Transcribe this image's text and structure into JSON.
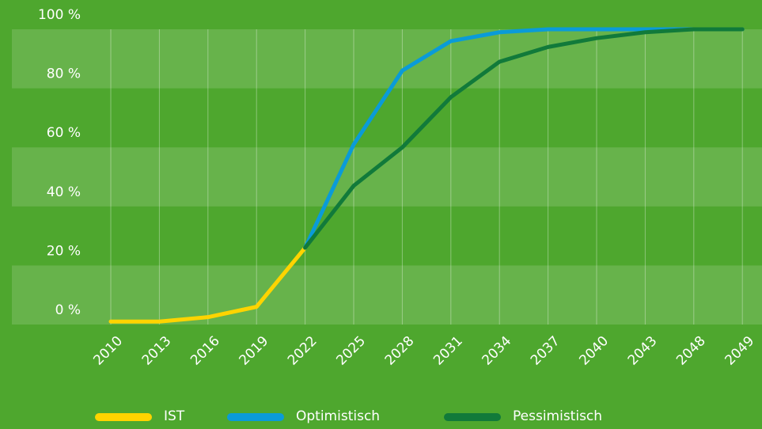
{
  "chart_data": {
    "type": "line",
    "categories": [
      "2010",
      "2013",
      "2016",
      "2019",
      "2022",
      "2025",
      "2028",
      "2031",
      "2034",
      "2037",
      "2040",
      "2043",
      "2048",
      "2049"
    ],
    "series": [
      {
        "name": "IST",
        "color": "#ffd400",
        "values": [
          1,
          1,
          2.5,
          6,
          26,
          null,
          null,
          null,
          null,
          null,
          null,
          null,
          null,
          null
        ]
      },
      {
        "name": "Optimistisch",
        "color": "#0a9bd8",
        "values": [
          null,
          null,
          null,
          null,
          26,
          61,
          86,
          96,
          99,
          100,
          100,
          100,
          100,
          100
        ]
      },
      {
        "name": "Pessimistisch",
        "color": "#117a3a",
        "values": [
          null,
          null,
          null,
          null,
          26,
          47,
          60,
          77,
          89,
          94,
          97,
          99,
          100,
          100
        ]
      }
    ],
    "ylim": [
      0,
      100
    ],
    "yticks": [
      {
        "value": 0,
        "label": "0 %"
      },
      {
        "value": 20,
        "label": "20 %"
      },
      {
        "value": 40,
        "label": "40 %"
      },
      {
        "value": 60,
        "label": "60 %"
      },
      {
        "value": 80,
        "label": "80 %"
      },
      {
        "value": 100,
        "label": "100 %"
      }
    ],
    "grid": true,
    "legend": "bottom"
  }
}
